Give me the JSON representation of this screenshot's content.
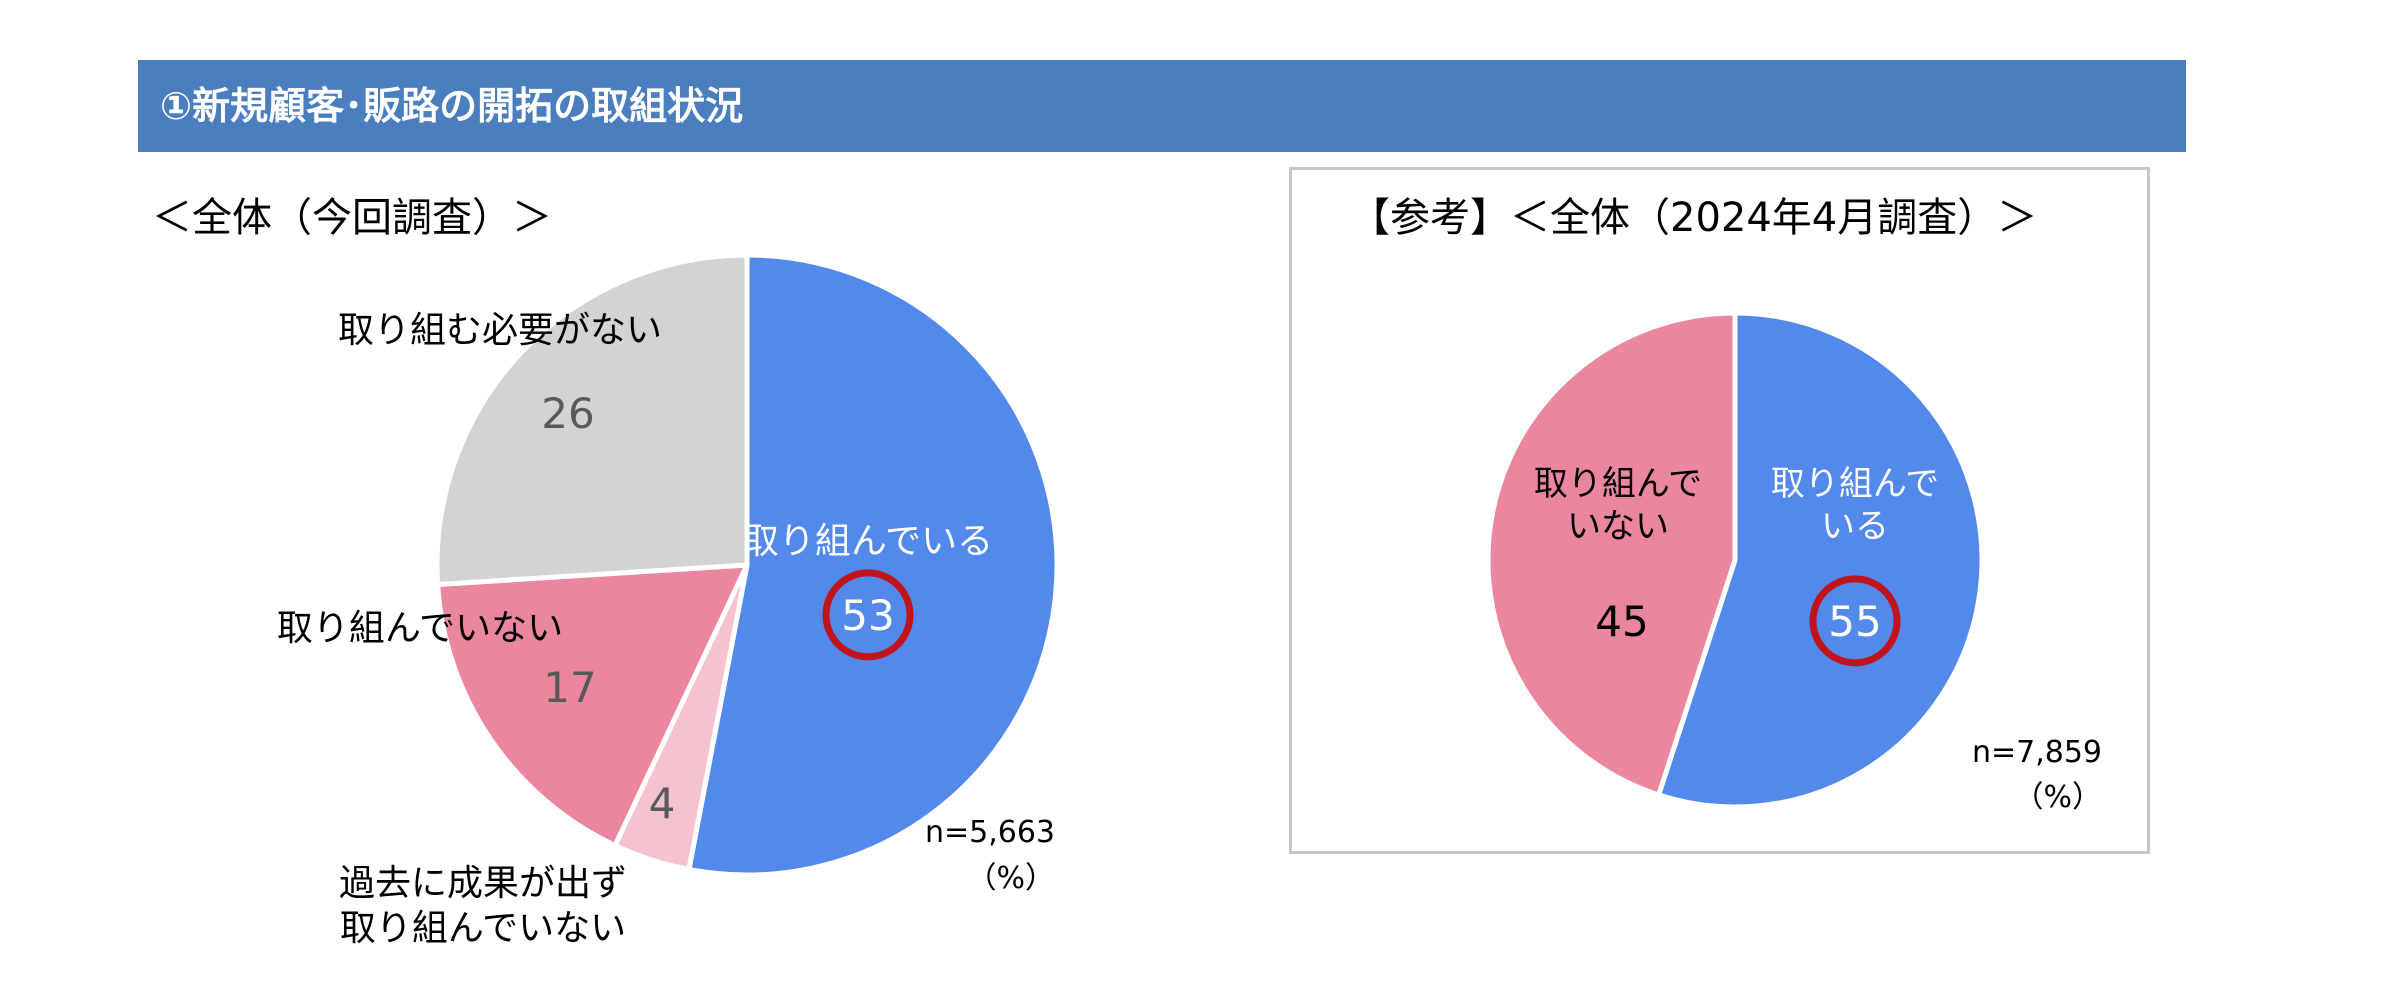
{
  "header": {
    "title": "①新規顧客･販路の開拓の取組状況"
  },
  "chart_data": [
    {
      "type": "pie",
      "title": "＜全体（今回調査）＞",
      "n_label": "n=5,663",
      "unit_label": "（%）",
      "slices": [
        {
          "label": "取り組んでいる",
          "value": 53,
          "color": "#5489ec",
          "label_color": "#ffffff",
          "value_color": "#ffffff",
          "highlight": true
        },
        {
          "label": "過去に成果が出ず取り組んでいない",
          "label_lines": [
            "過去に成果が出ず",
            "取り組んでいない"
          ],
          "value": 4,
          "color": "#f4c3cf",
          "label_color": "#000000",
          "value_color": "#595959",
          "highlight": false
        },
        {
          "label": "取り組んでいない",
          "value": 17,
          "color": "#ea869e",
          "label_color": "#000000",
          "value_color": "#595959",
          "highlight": false
        },
        {
          "label": "取り組む必要がない",
          "value": 26,
          "color": "#d3d3d3",
          "label_color": "#000000",
          "value_color": "#595959",
          "highlight": false
        }
      ]
    },
    {
      "type": "pie",
      "title": "【参考】＜全体（2024年4月調査）＞",
      "n_label": "n=7,859",
      "unit_label": "（%）",
      "slices": [
        {
          "label": "取り組んでいる",
          "label_lines": [
            "取り組んで",
            "いる"
          ],
          "value": 55,
          "color": "#5489ec",
          "label_color": "#ffffff",
          "value_color": "#ffffff",
          "highlight": true
        },
        {
          "label": "取り組んでいない",
          "label_lines": [
            "取り組んで",
            "いない"
          ],
          "value": 45,
          "color": "#ea869e",
          "label_color": "#000000",
          "value_color": "#000000",
          "highlight": false
        }
      ]
    }
  ],
  "highlight_color": "#c0141c"
}
